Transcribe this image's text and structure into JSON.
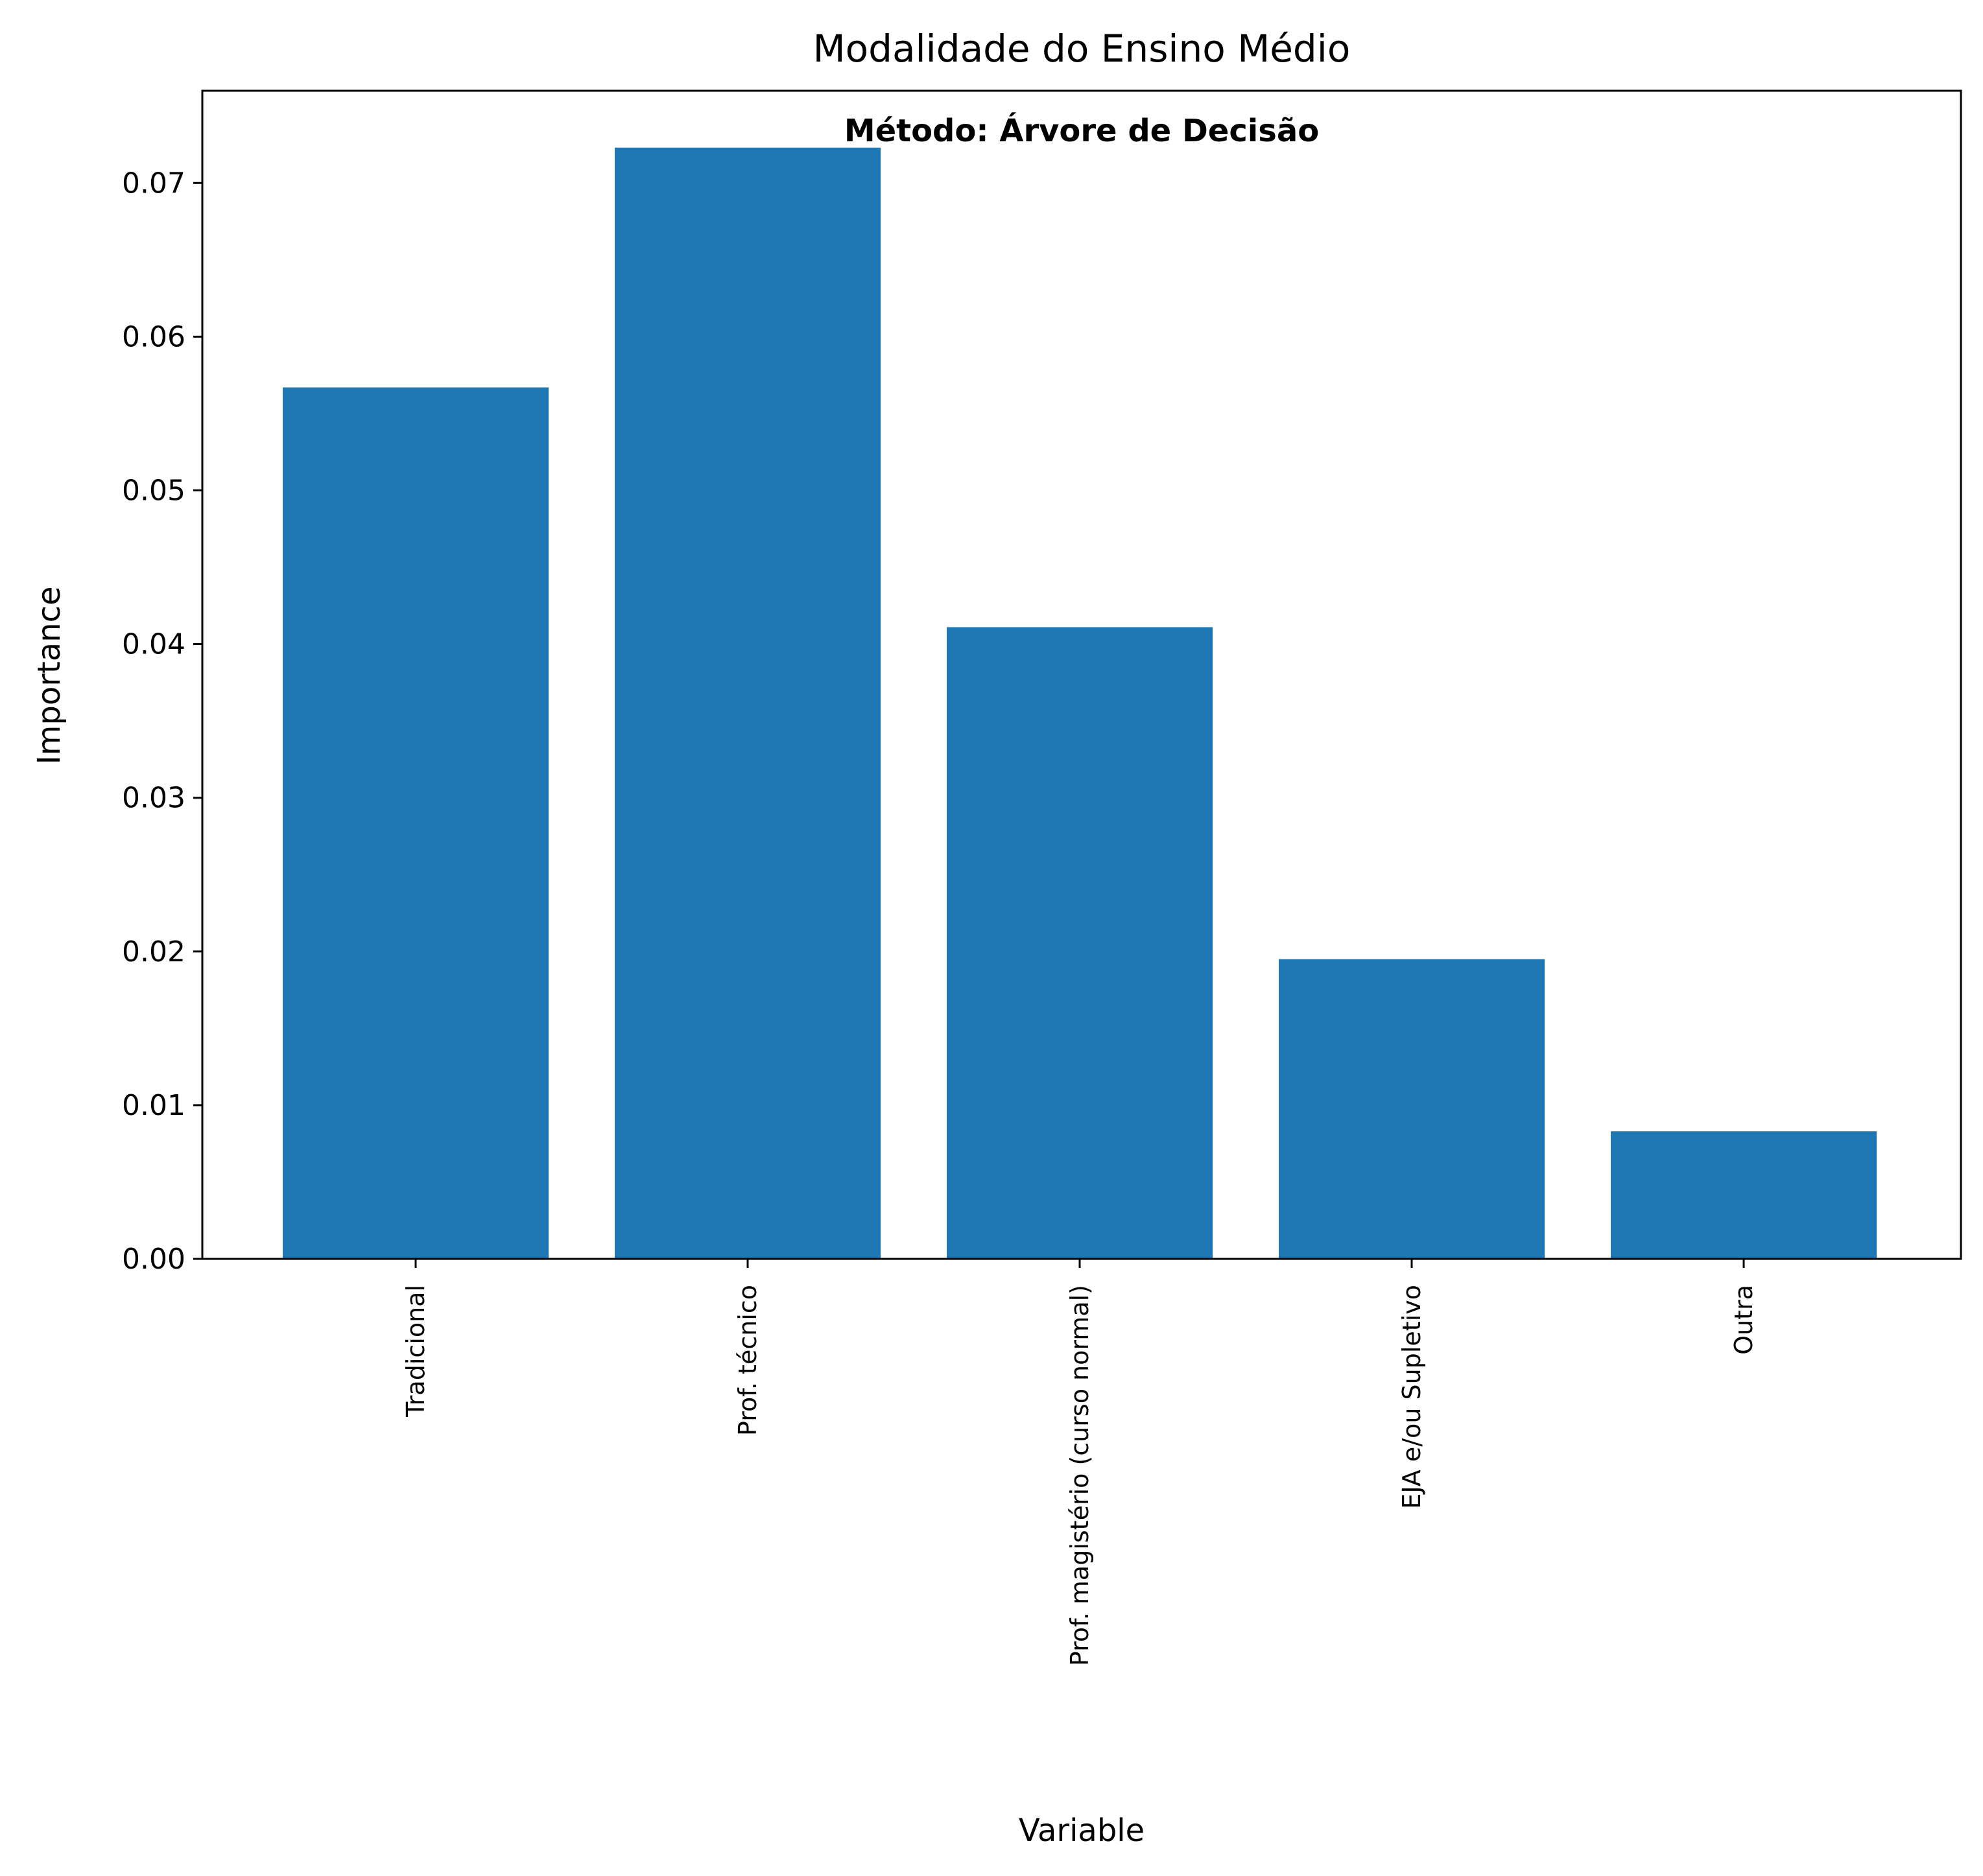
{
  "chart_data": {
    "type": "bar",
    "title": "Modalidade do Ensino Médio",
    "annotation": "Método: Árvore de Decisão",
    "xlabel": "Variable",
    "ylabel": "Importance",
    "categories": [
      "Tradicional",
      "Prof. técnico",
      "Prof. magistério (curso normal)",
      "EJA e/ou Supletivo",
      "Outra"
    ],
    "values": [
      0.0567,
      0.0723,
      0.0411,
      0.0195,
      0.0083
    ],
    "ylim": [
      0,
      0.076
    ],
    "yticks": [
      "0.00",
      "0.01",
      "0.02",
      "0.03",
      "0.04",
      "0.05",
      "0.06",
      "0.07"
    ],
    "bar_color": "#1f77b4",
    "grid": false
  }
}
